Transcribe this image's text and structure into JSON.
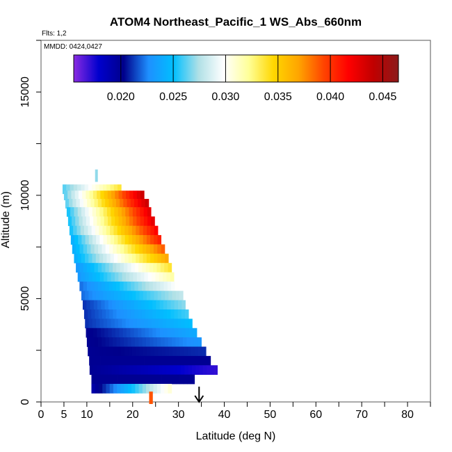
{
  "chart_data": {
    "type": "heatmap",
    "title": "ATOM4 Northeast_Pacific_1 WS_Abs_660nm",
    "notes": {
      "flights": "Flts: 1,2",
      "dates": "MMDD: 0424,0427"
    },
    "xlabel": "Latitude (deg N)",
    "ylabel": "Altitude (m)",
    "xlim": [
      0,
      85
    ],
    "ylim": [
      0,
      17500
    ],
    "x_tick_labels": [
      "0",
      "5",
      "10",
      "20",
      "30",
      "40",
      "50",
      "60",
      "70",
      "80"
    ],
    "y_tick_labels": [
      "0",
      "5000",
      "10000",
      "15000"
    ],
    "colorbar": {
      "range": [
        0.0155,
        0.0465
      ],
      "tick_labels": [
        "0.020",
        "0.025",
        "0.030",
        "0.035",
        "0.040",
        "0.045"
      ],
      "tick_values": [
        0.02,
        0.025,
        0.03,
        0.035,
        0.04,
        0.045
      ],
      "colors": [
        "#8a2be2",
        "#0000cd",
        "#00008b",
        "#1e90ff",
        "#00bfff",
        "#b0e0e6",
        "#ffffff",
        "#ffff99",
        "#ffd700",
        "#ffa500",
        "#ff4500",
        "#ff0000",
        "#c00000",
        "#8b1a1a"
      ]
    },
    "marker": {
      "latitude": 34.5,
      "symbol": "arrow"
    },
    "rows": [
      {
        "alt": 10300,
        "lat0": 4.7,
        "lat1": 17.5,
        "v0": 0.026,
        "v1": 0.034
      },
      {
        "alt": 10000,
        "lat0": 5.0,
        "lat1": 22.5,
        "v0": 0.026,
        "v1": 0.044
      },
      {
        "alt": 9600,
        "lat0": 5.3,
        "lat1": 23.5,
        "v0": 0.026,
        "v1": 0.044
      },
      {
        "alt": 9200,
        "lat0": 5.6,
        "lat1": 24.0,
        "v0": 0.025,
        "v1": 0.043
      },
      {
        "alt": 8750,
        "lat0": 5.9,
        "lat1": 24.8,
        "v0": 0.025,
        "v1": 0.043
      },
      {
        "alt": 8300,
        "lat0": 6.2,
        "lat1": 25.5,
        "v0": 0.025,
        "v1": 0.042
      },
      {
        "alt": 7850,
        "lat0": 6.5,
        "lat1": 26.2,
        "v0": 0.024,
        "v1": 0.041
      },
      {
        "alt": 7400,
        "lat0": 6.8,
        "lat1": 27.0,
        "v0": 0.024,
        "v1": 0.039
      },
      {
        "alt": 6950,
        "lat0": 7.2,
        "lat1": 27.8,
        "v0": 0.024,
        "v1": 0.037
      },
      {
        "alt": 6500,
        "lat0": 7.6,
        "lat1": 28.5,
        "v0": 0.023,
        "v1": 0.034
      },
      {
        "alt": 6050,
        "lat0": 8.0,
        "lat1": 29.0,
        "v0": 0.023,
        "v1": 0.032
      },
      {
        "alt": 5600,
        "lat0": 8.4,
        "lat1": 30.0,
        "v0": 0.022,
        "v1": 0.03
      },
      {
        "alt": 5150,
        "lat0": 8.8,
        "lat1": 31.0,
        "v0": 0.022,
        "v1": 0.028
      },
      {
        "alt": 4700,
        "lat0": 9.1,
        "lat1": 31.5,
        "v0": 0.021,
        "v1": 0.027
      },
      {
        "alt": 4250,
        "lat0": 9.4,
        "lat1": 32.2,
        "v0": 0.021,
        "v1": 0.026
      },
      {
        "alt": 3800,
        "lat0": 9.6,
        "lat1": 33.0,
        "v0": 0.021,
        "v1": 0.025
      },
      {
        "alt": 3350,
        "lat0": 9.8,
        "lat1": 34.0,
        "v0": 0.02,
        "v1": 0.024
      },
      {
        "alt": 2900,
        "lat0": 10.0,
        "lat1": 35.0,
        "v0": 0.02,
        "v1": 0.023
      },
      {
        "alt": 2450,
        "lat0": 10.2,
        "lat1": 36.0,
        "v0": 0.02,
        "v1": 0.021
      },
      {
        "alt": 2000,
        "lat0": 10.5,
        "lat1": 37.0,
        "v0": 0.02,
        "v1": 0.02
      },
      {
        "alt": 1550,
        "lat0": 10.6,
        "lat1": 38.5,
        "v0": 0.02,
        "v1": 0.017
      },
      {
        "alt": 1100,
        "lat0": 11.0,
        "lat1": 33.5,
        "v0": 0.02,
        "v1": 0.02
      },
      {
        "alt": 650,
        "lat0": 11.0,
        "lat1": 28.5,
        "v0": 0.019,
        "v1": 0.031
      }
    ],
    "extra_cells": [
      {
        "alt": 10950,
        "lat0": 11.8,
        "lat1": 12.4,
        "v": 0.027
      },
      {
        "alt": 200,
        "lat0": 23.6,
        "lat1": 24.4,
        "v": 0.039
      }
    ]
  }
}
